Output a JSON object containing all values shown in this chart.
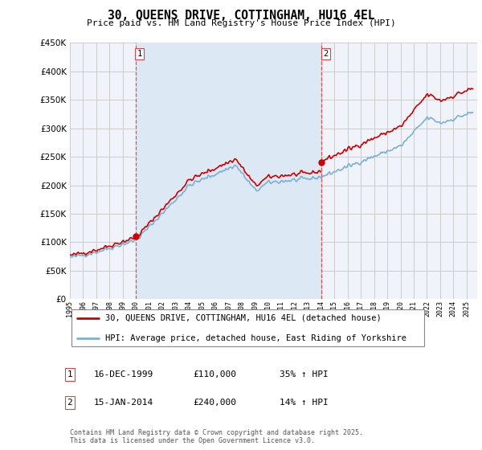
{
  "title": "30, QUEENS DRIVE, COTTINGHAM, HU16 4EL",
  "subtitle": "Price paid vs. HM Land Registry's House Price Index (HPI)",
  "legend_line1": "30, QUEENS DRIVE, COTTINGHAM, HU16 4EL (detached house)",
  "legend_line2": "HPI: Average price, detached house, East Riding of Yorkshire",
  "sale1_date": "16-DEC-1999",
  "sale1_price": "£110,000",
  "sale1_hpi": "35% ↑ HPI",
  "sale2_date": "15-JAN-2014",
  "sale2_price": "£240,000",
  "sale2_hpi": "14% ↑ HPI",
  "footer": "Contains HM Land Registry data © Crown copyright and database right 2025.\nThis data is licensed under the Open Government Licence v3.0.",
  "red_color": "#cc0000",
  "blue_color": "#7bafd4",
  "blue_fill": "#dce9f5",
  "dashed_color": "#dd4444",
  "bg_color": "#f0f4fa",
  "grid_color": "#cccccc",
  "ylim": [
    0,
    450000
  ],
  "yticks": [
    0,
    50000,
    100000,
    150000,
    200000,
    250000,
    300000,
    350000,
    400000,
    450000
  ],
  "xlim_start": 1995.0,
  "xlim_end": 2025.8,
  "sale1_x": 1999.96,
  "sale1_y": 110000,
  "sale2_x": 2014.04,
  "sale2_y": 240000
}
